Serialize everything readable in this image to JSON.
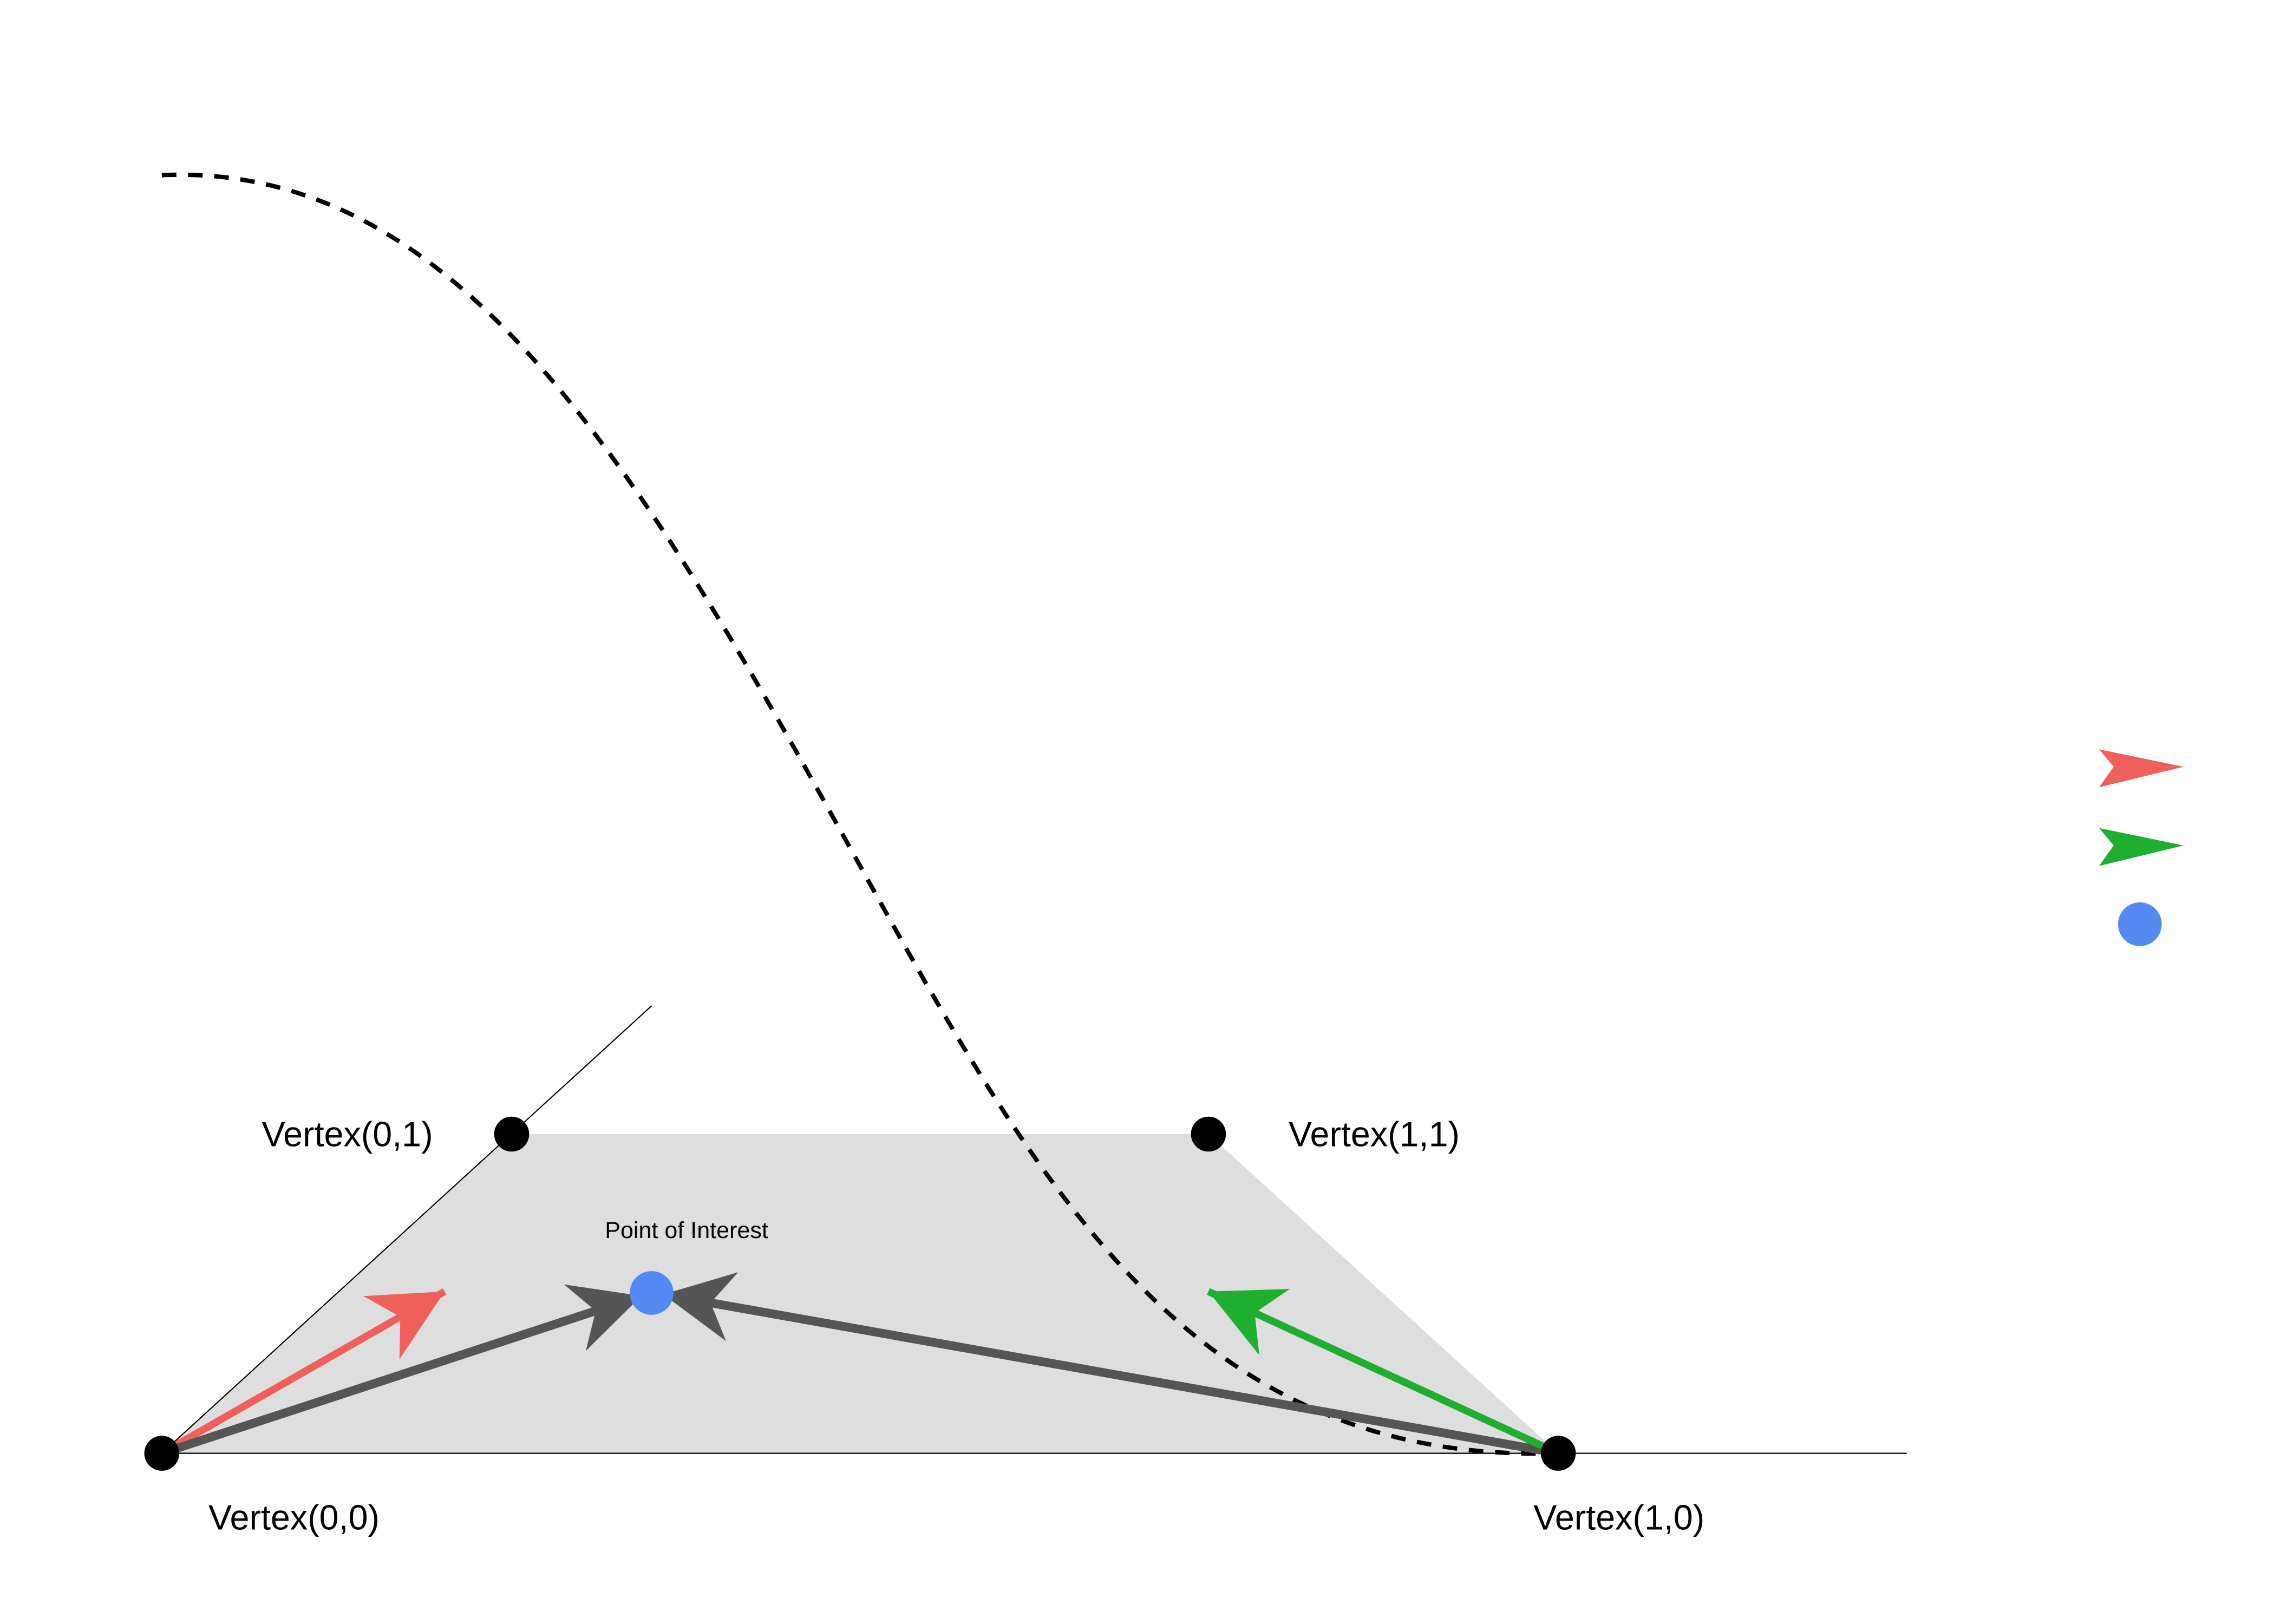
{
  "labels": {
    "v00": "Vertex(0,0)",
    "v10": "Vertex(1,0)",
    "v01": "Vertex(0,1)",
    "v11": "Vertex(1,1)",
    "point": "Point of Interest"
  }
}
